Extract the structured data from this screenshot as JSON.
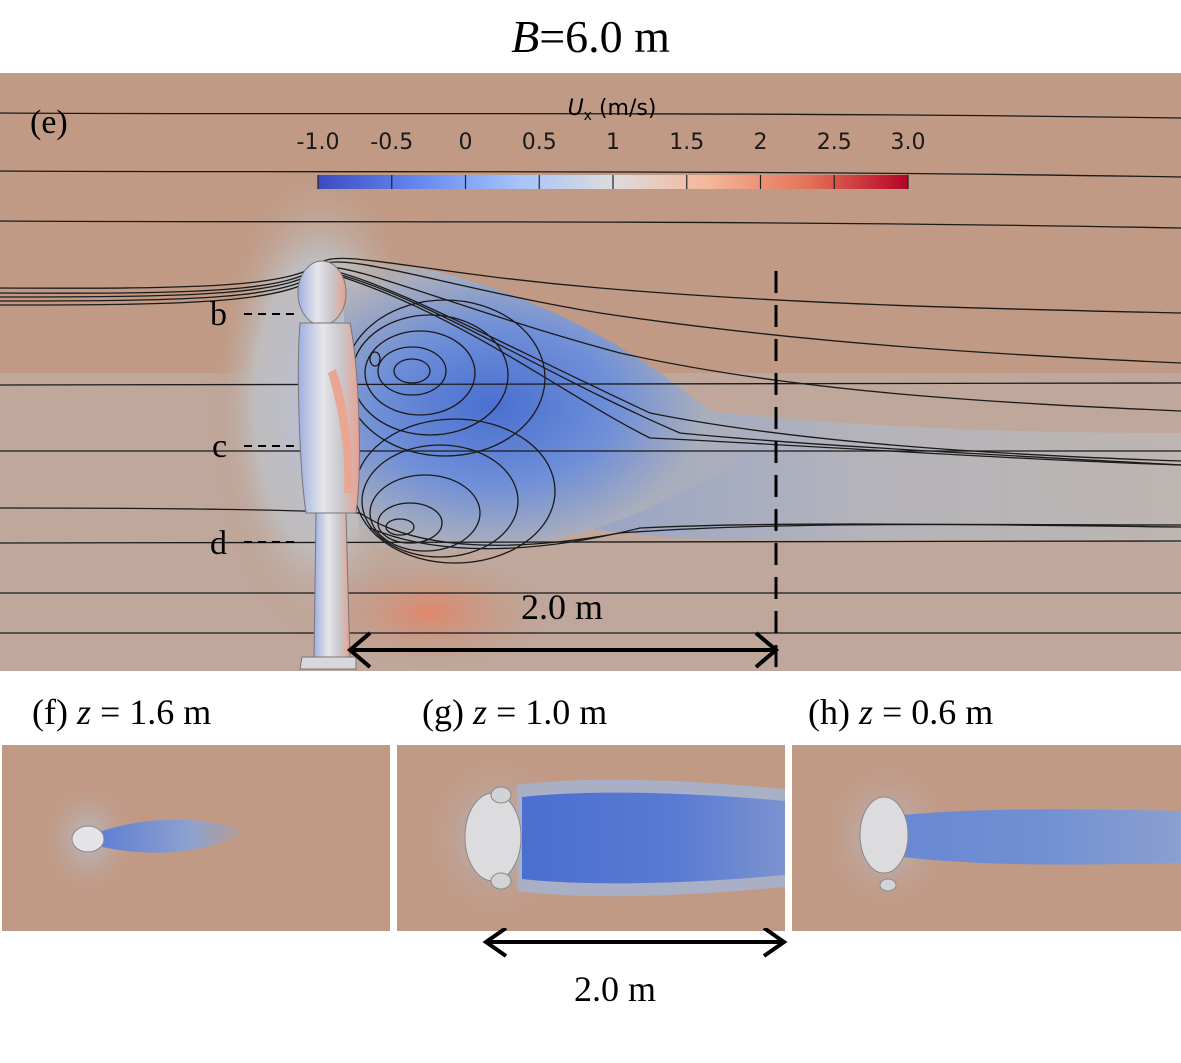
{
  "title": {
    "var": "B",
    "rest": "=6.0 m"
  },
  "main": {
    "tag": "(e)",
    "colorbar": {
      "title_var": "U",
      "title_sub": "x",
      "title_unit": " (m/s)",
      "ticks": [
        "-1.0",
        "-0.5",
        "0",
        "0.5",
        "1",
        "1.5",
        "2",
        "2.5",
        "3.0"
      ],
      "range": [
        -1.0,
        3.0
      ],
      "colors": [
        "#3b4cc0",
        "#7396f5",
        "#b0cbfc",
        "#dddcdc",
        "#f6b89c",
        "#e9785d",
        "#b40426"
      ]
    },
    "height_markers": [
      "b",
      "c",
      "d"
    ],
    "scale_label": "2.0 m"
  },
  "subpanels": [
    {
      "tag": "(f) ",
      "var": "z",
      "rest": " = 1.6 m"
    },
    {
      "tag": "(g) ",
      "var": "z",
      "rest": " = 1.0 m"
    },
    {
      "tag": "(h) ",
      "var": "z",
      "rest": " = 0.6 m"
    }
  ],
  "bottom_scale_label": "2.0 m",
  "colors": {
    "background": "#c09a85",
    "wake_blue": "#5a7ad0",
    "wake_light": "#b4b4b6",
    "warm": "#d38a6d",
    "figure": "#c8c8cc"
  }
}
